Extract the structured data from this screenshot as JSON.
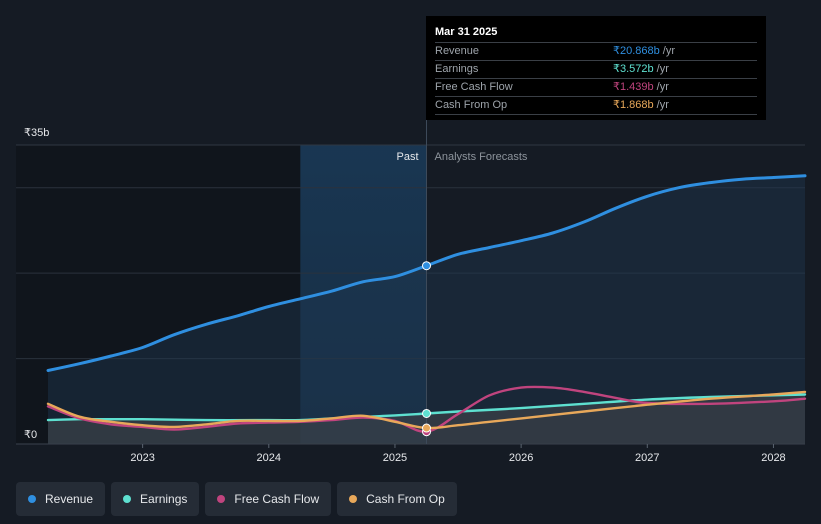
{
  "chart_data": {
    "type": "line",
    "currency": "₹",
    "y_unit": "b",
    "ylim": [
      0,
      35
    ],
    "y_ticks": [
      {
        "value": 35,
        "label": "₹35b"
      },
      {
        "value": 0,
        "label": "₹0"
      }
    ],
    "xlim": [
      2022.25,
      2028.25
    ],
    "x_ticks": [
      {
        "value": 2023,
        "label": "2023"
      },
      {
        "value": 2024,
        "label": "2024"
      },
      {
        "value": 2025,
        "label": "2025"
      },
      {
        "value": 2026,
        "label": "2026"
      },
      {
        "value": 2027,
        "label": "2027"
      },
      {
        "value": 2028,
        "label": "2028"
      }
    ],
    "highlight_start": 2024.25,
    "divider_x": 2025.25,
    "past_label": "Past",
    "forecast_label": "Analysts Forecasts",
    "series": [
      {
        "name": "Revenue",
        "color": "#2f8fe0",
        "area": true,
        "points": [
          [
            2022.25,
            8.6
          ],
          [
            2022.5,
            9.4
          ],
          [
            2022.75,
            10.3
          ],
          [
            2023.0,
            11.3
          ],
          [
            2023.25,
            12.8
          ],
          [
            2023.5,
            14.0
          ],
          [
            2023.75,
            15.0
          ],
          [
            2024.0,
            16.1
          ],
          [
            2024.25,
            17.0
          ],
          [
            2024.5,
            17.9
          ],
          [
            2024.75,
            19.0
          ],
          [
            2025.0,
            19.6
          ],
          [
            2025.25,
            20.868
          ],
          [
            2025.5,
            22.2
          ],
          [
            2025.75,
            23.0
          ],
          [
            2026.0,
            23.8
          ],
          [
            2026.25,
            24.7
          ],
          [
            2026.5,
            26.0
          ],
          [
            2026.75,
            27.6
          ],
          [
            2027.0,
            29.0
          ],
          [
            2027.25,
            30.0
          ],
          [
            2027.5,
            30.6
          ],
          [
            2027.75,
            31.0
          ],
          [
            2028.0,
            31.2
          ],
          [
            2028.25,
            31.4
          ]
        ]
      },
      {
        "name": "Earnings",
        "color": "#5ee0d0",
        "area": true,
        "points": [
          [
            2022.25,
            2.8
          ],
          [
            2022.5,
            2.9
          ],
          [
            2022.75,
            2.9
          ],
          [
            2023.0,
            2.9
          ],
          [
            2023.5,
            2.8
          ],
          [
            2024.0,
            2.8
          ],
          [
            2024.25,
            2.8
          ],
          [
            2024.5,
            3.0
          ],
          [
            2025.0,
            3.35
          ],
          [
            2025.25,
            3.572
          ],
          [
            2025.5,
            3.8
          ],
          [
            2026.0,
            4.2
          ],
          [
            2026.5,
            4.7
          ],
          [
            2027.0,
            5.2
          ],
          [
            2027.5,
            5.5
          ],
          [
            2028.0,
            5.7
          ],
          [
            2028.25,
            5.8
          ]
        ]
      },
      {
        "name": "Free Cash Flow",
        "color": "#c0447e",
        "area": false,
        "points": [
          [
            2022.25,
            4.4
          ],
          [
            2022.5,
            3.0
          ],
          [
            2022.75,
            2.3
          ],
          [
            2023.0,
            2.0
          ],
          [
            2023.25,
            1.7
          ],
          [
            2023.5,
            2.0
          ],
          [
            2023.75,
            2.4
          ],
          [
            2024.0,
            2.5
          ],
          [
            2024.25,
            2.6
          ],
          [
            2024.5,
            2.8
          ],
          [
            2024.75,
            3.1
          ],
          [
            2025.0,
            2.7
          ],
          [
            2025.25,
            1.439
          ],
          [
            2025.5,
            3.5
          ],
          [
            2025.75,
            5.7
          ],
          [
            2026.0,
            6.6
          ],
          [
            2026.25,
            6.6
          ],
          [
            2026.5,
            6.1
          ],
          [
            2026.75,
            5.4
          ],
          [
            2027.0,
            4.8
          ],
          [
            2027.5,
            4.7
          ],
          [
            2028.0,
            5.0
          ],
          [
            2028.25,
            5.3
          ]
        ]
      },
      {
        "name": "Cash From Op",
        "color": "#e8a85a",
        "area": false,
        "points": [
          [
            2022.25,
            4.7
          ],
          [
            2022.5,
            3.2
          ],
          [
            2022.75,
            2.6
          ],
          [
            2023.0,
            2.2
          ],
          [
            2023.25,
            2.0
          ],
          [
            2023.5,
            2.3
          ],
          [
            2023.75,
            2.7
          ],
          [
            2024.0,
            2.7
          ],
          [
            2024.25,
            2.7
          ],
          [
            2024.5,
            3.0
          ],
          [
            2024.75,
            3.3
          ],
          [
            2025.0,
            2.6
          ],
          [
            2025.25,
            1.868
          ],
          [
            2025.5,
            2.2
          ],
          [
            2025.75,
            2.6
          ],
          [
            2026.0,
            3.0
          ],
          [
            2026.5,
            3.8
          ],
          [
            2027.0,
            4.6
          ],
          [
            2027.5,
            5.3
          ],
          [
            2028.0,
            5.8
          ],
          [
            2028.25,
            6.1
          ]
        ]
      }
    ]
  },
  "tooltip": {
    "date": "Mar 31 2025",
    "rows": [
      {
        "label": "Revenue",
        "value": "₹20.868b",
        "unit": "/yr",
        "color": "#2f8fe0"
      },
      {
        "label": "Earnings",
        "value": "₹3.572b",
        "unit": "/yr",
        "color": "#5ee0d0"
      },
      {
        "label": "Free Cash Flow",
        "value": "₹1.439b",
        "unit": "/yr",
        "color": "#c0447e"
      },
      {
        "label": "Cash From Op",
        "value": "₹1.868b",
        "unit": "/yr",
        "color": "#e8a85a"
      }
    ]
  },
  "legend": [
    {
      "label": "Revenue",
      "color": "#2f8fe0"
    },
    {
      "label": "Earnings",
      "color": "#5ee0d0"
    },
    {
      "label": "Free Cash Flow",
      "color": "#c0447e"
    },
    {
      "label": "Cash From Op",
      "color": "#e8a85a"
    }
  ]
}
